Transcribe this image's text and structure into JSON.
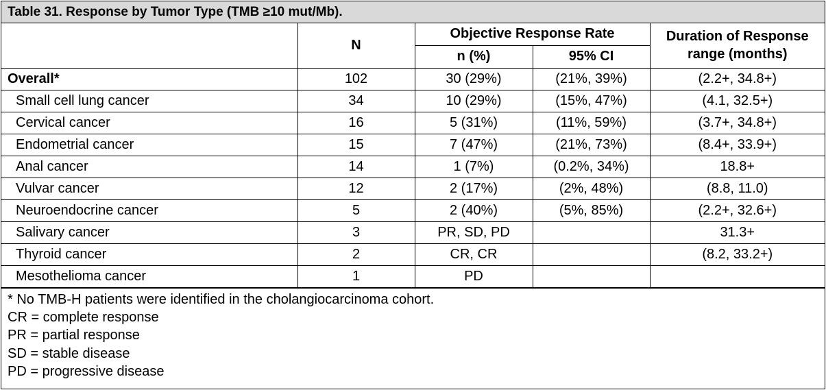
{
  "caption": "Table 31. Response by Tumor Type (TMB ≥10 mut/Mb).",
  "headers": {
    "n": "N",
    "orr": "Objective Response Rate",
    "n_pct": "n (%)",
    "ci": "95% CI",
    "dor_line1": "Duration of Response",
    "dor_line2": "range (months)"
  },
  "rows": [
    {
      "type": "Overall*",
      "n": "102",
      "n_pct": "30 (29%)",
      "ci": "(21%, 39%)",
      "dor": "(2.2+, 34.8+)"
    },
    {
      "type": "Small cell lung cancer",
      "n": "34",
      "n_pct": "10 (29%)",
      "ci": "(15%, 47%)",
      "dor": "(4.1, 32.5+)"
    },
    {
      "type": "Cervical cancer",
      "n": "16",
      "n_pct": "5 (31%)",
      "ci": "(11%, 59%)",
      "dor": "(3.7+, 34.8+)"
    },
    {
      "type": "Endometrial cancer",
      "n": "15",
      "n_pct": "7 (47%)",
      "ci": "(21%, 73%)",
      "dor": "(8.4+, 33.9+)"
    },
    {
      "type": "Anal cancer",
      "n": "14",
      "n_pct": "1 (7%)",
      "ci": "(0.2%, 34%)",
      "dor": "18.8+"
    },
    {
      "type": "Vulvar cancer",
      "n": "12",
      "n_pct": "2 (17%)",
      "ci": "(2%, 48%)",
      "dor": "(8.8, 11.0)"
    },
    {
      "type": "Neuroendocrine cancer",
      "n": "5",
      "n_pct": "2 (40%)",
      "ci": "(5%, 85%)",
      "dor": "(2.2+, 32.6+)"
    },
    {
      "type": "Salivary cancer",
      "n": "3",
      "n_pct": "PR, SD, PD",
      "ci": "",
      "dor": "31.3+"
    },
    {
      "type": "Thyroid cancer",
      "n": "2",
      "n_pct": "CR, CR",
      "ci": "",
      "dor": "(8.2, 33.2+)"
    },
    {
      "type": "Mesothelioma cancer",
      "n": "1",
      "n_pct": "PD",
      "ci": "",
      "dor": ""
    }
  ],
  "footnotes": [
    "* No TMB-H patients were identified in the cholangiocarcinoma cohort.",
    "CR = complete response",
    "PR = partial response",
    "SD = stable disease",
    "PD = progressive disease"
  ]
}
